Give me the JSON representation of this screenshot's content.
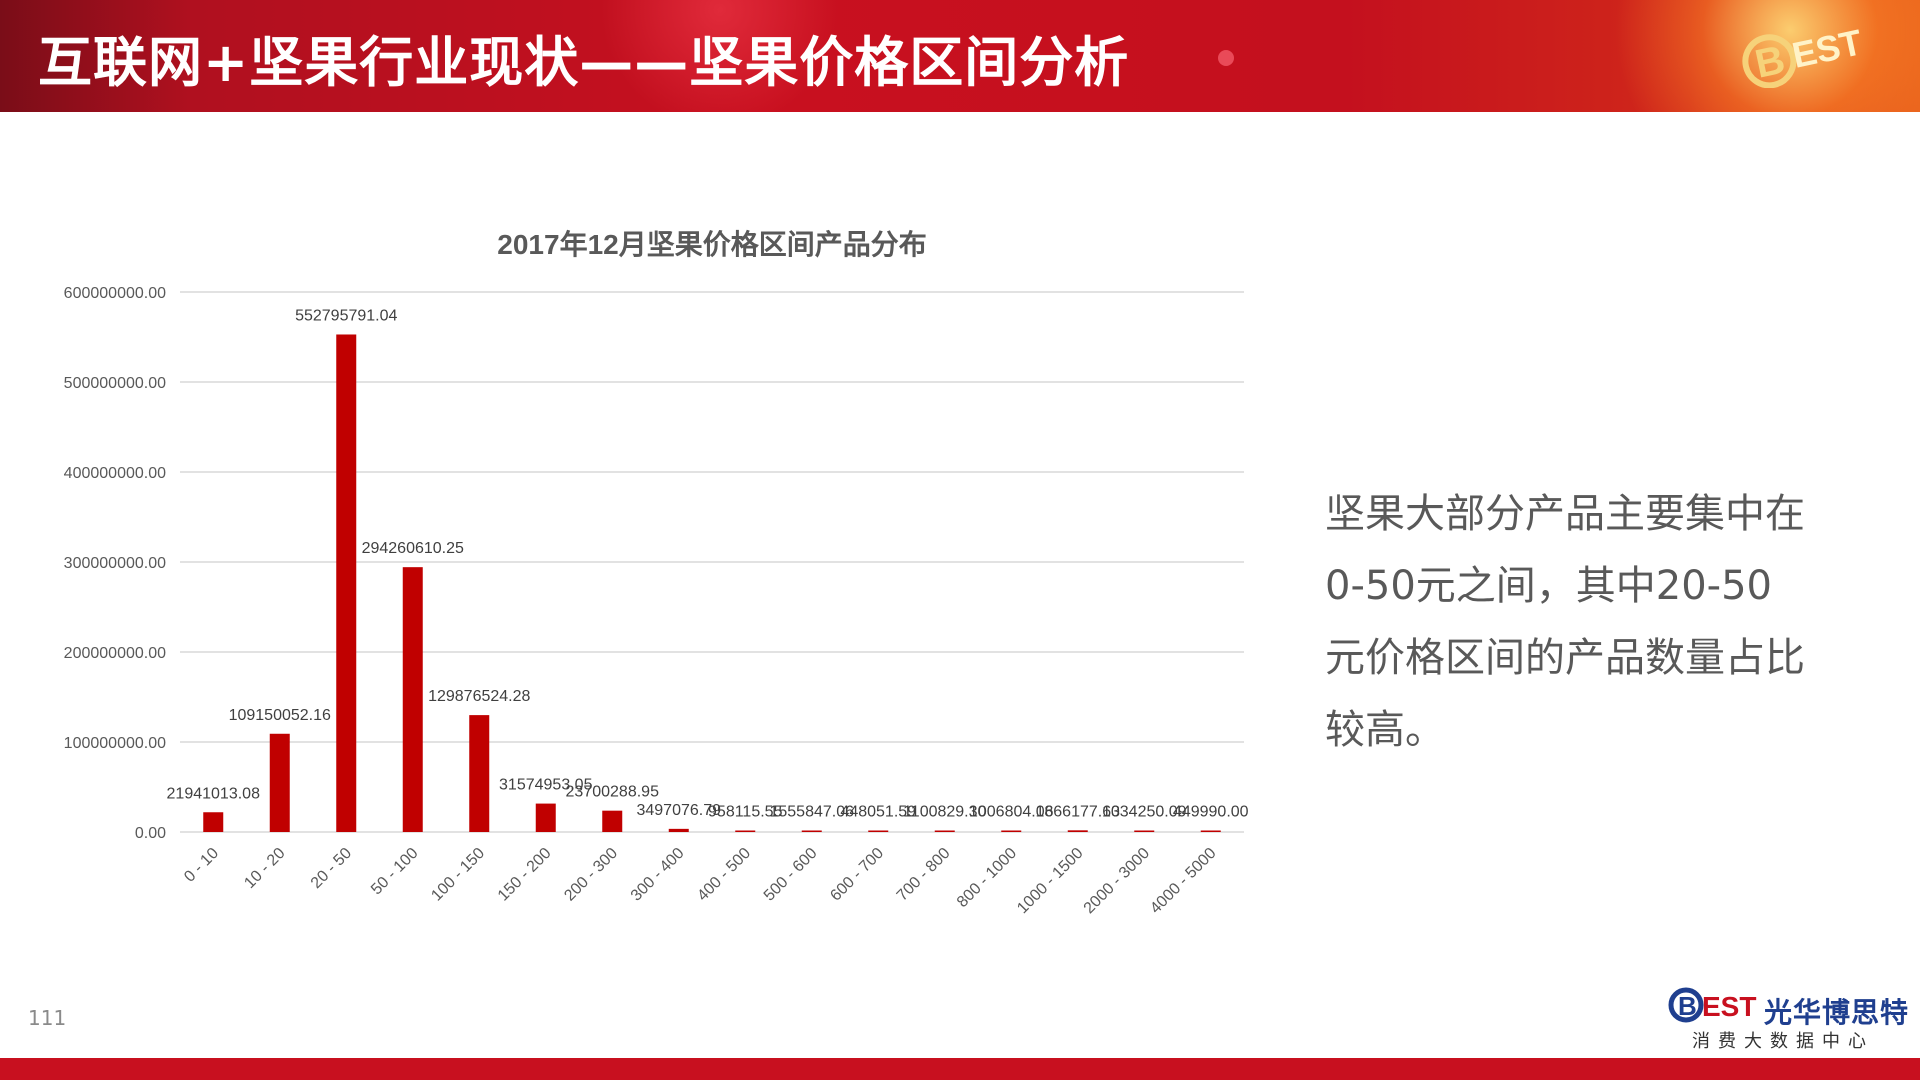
{
  "header": {
    "title": "互联网+坚果行业现状——坚果价格区间分析"
  },
  "page_number": "111",
  "side_text": "坚果大部分产品主要集中在0-50元之间，其中20-50元价格区间的产品数量占比较高。",
  "logo": {
    "brand_cn": "光华博思特",
    "subtitle": "消费大数据中心"
  },
  "colors": {
    "accent": "#c8101f",
    "bar": "#c00000"
  },
  "chart_data": {
    "type": "bar",
    "title": "2017年12月坚果价格区间产品分布",
    "categories": [
      "0 - 10",
      "10 - 20",
      "20 - 50",
      "50 - 100",
      "100 - 150",
      "150 - 200",
      "200 - 300",
      "300 - 400",
      "400 - 500",
      "500 - 600",
      "600 - 700",
      "700 - 800",
      "800 - 1000",
      "1000 - 1500",
      "2000 - 3000",
      "4000 - 5000"
    ],
    "values": [
      21941013.08,
      109150052.16,
      552795791.04,
      294260610.25,
      129876524.28,
      31574953.05,
      23700288.95,
      3497076.79,
      958115.55,
      1555847.06,
      448051.59,
      1100829.3,
      1006804.06,
      1866177.63,
      1034250.09,
      449990.0
    ],
    "labels": [
      "21941013.08",
      "109150052.16",
      "552795791.04",
      "294260610.25",
      "129876524.28",
      "31574953.05",
      "23700288.95",
      "3497076.79",
      "958115.55",
      "1555847.06",
      "448051.59",
      "1100829.30",
      "1006804.06",
      "1866177.63",
      "1034250.09",
      "449990.00"
    ],
    "yticks": [
      "0.00",
      "100000000.00",
      "200000000.00",
      "300000000.00",
      "400000000.00",
      "500000000.00",
      "600000000.00"
    ],
    "ylim": [
      0,
      600000000
    ],
    "grid": true,
    "legend": "none"
  }
}
